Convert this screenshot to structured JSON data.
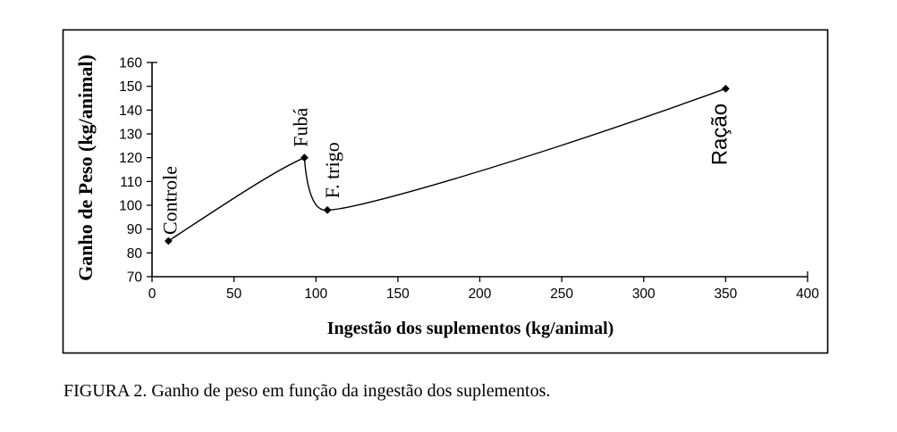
{
  "figure": {
    "caption": "FIGURA 2. Ganho de peso em função da ingestão dos suplementos."
  },
  "chart_data": {
    "type": "line",
    "title": "",
    "xlabel": "Ingestão dos suplementos (kg/animal)",
    "ylabel": "Ganho de Peso (kg/animal)",
    "xlim": [
      0,
      400
    ],
    "ylim": [
      70,
      160
    ],
    "x_ticks": [
      0,
      50,
      100,
      150,
      200,
      250,
      300,
      350,
      400
    ],
    "y_ticks": [
      70,
      80,
      90,
      100,
      110,
      120,
      130,
      140,
      150,
      160
    ],
    "grid": false,
    "legend": "none",
    "line_color": "#000000",
    "marker": "diamond",
    "smooth": true,
    "points": [
      {
        "label": "Controle",
        "x": 10,
        "y": 85
      },
      {
        "label": "Fubá",
        "x": 93,
        "y": 120
      },
      {
        "label": "F. trigo",
        "x": 107,
        "y": 98
      },
      {
        "label": "Ração",
        "x": 350,
        "y": 149
      }
    ]
  }
}
